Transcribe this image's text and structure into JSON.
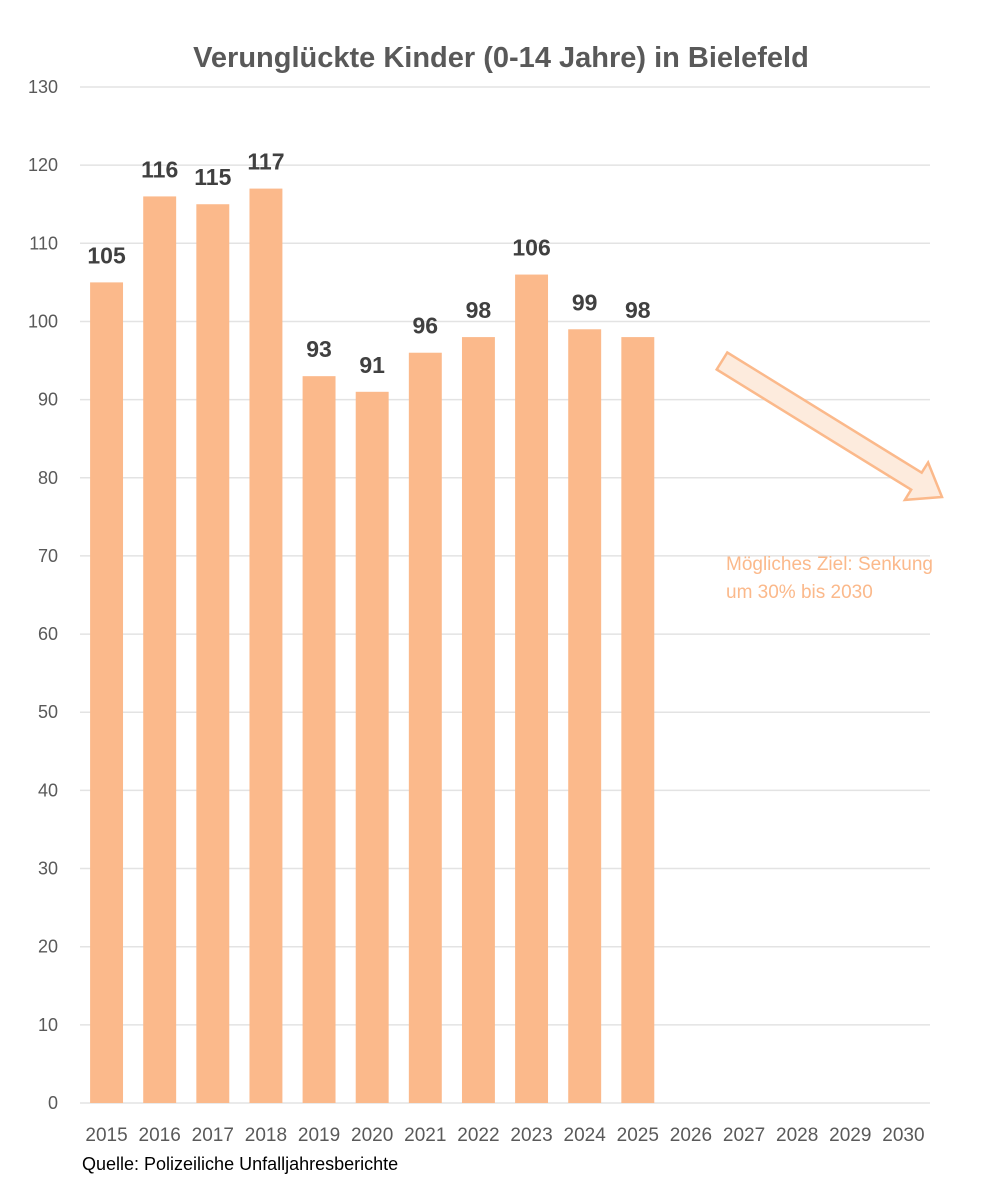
{
  "chart_data": {
    "type": "bar",
    "title": "Verunglückte Kinder (0-14 Jahre)  in Bielefeld",
    "xlabel": "",
    "ylabel": "",
    "categories": [
      "2015",
      "2016",
      "2017",
      "2018",
      "2019",
      "2020",
      "2021",
      "2022",
      "2023",
      "2024",
      "2025",
      "2026",
      "2027",
      "2028",
      "2029",
      "2030"
    ],
    "values": [
      105,
      116,
      115,
      117,
      93,
      91,
      96,
      98,
      106,
      99,
      98,
      null,
      null,
      null,
      null,
      null
    ],
    "data_labels": [
      "105",
      "116",
      "115",
      "117",
      "93",
      "91",
      "96",
      "98",
      "106",
      "99",
      "98"
    ],
    "ylim": [
      0,
      130
    ],
    "yticks": [
      0,
      10,
      20,
      30,
      40,
      50,
      60,
      70,
      80,
      90,
      100,
      110,
      120,
      130
    ],
    "grid": true,
    "legend": "none",
    "bar_color": "#FBB98B",
    "annotation": {
      "text_lines": [
        "Mögliches Ziel: Senkung",
        "um 30% bis 2030"
      ],
      "arrow": "down-right trend arrow",
      "color": "#FBB98B"
    },
    "source": "Quelle: Polizeiliche Unfalljahresberichte"
  }
}
